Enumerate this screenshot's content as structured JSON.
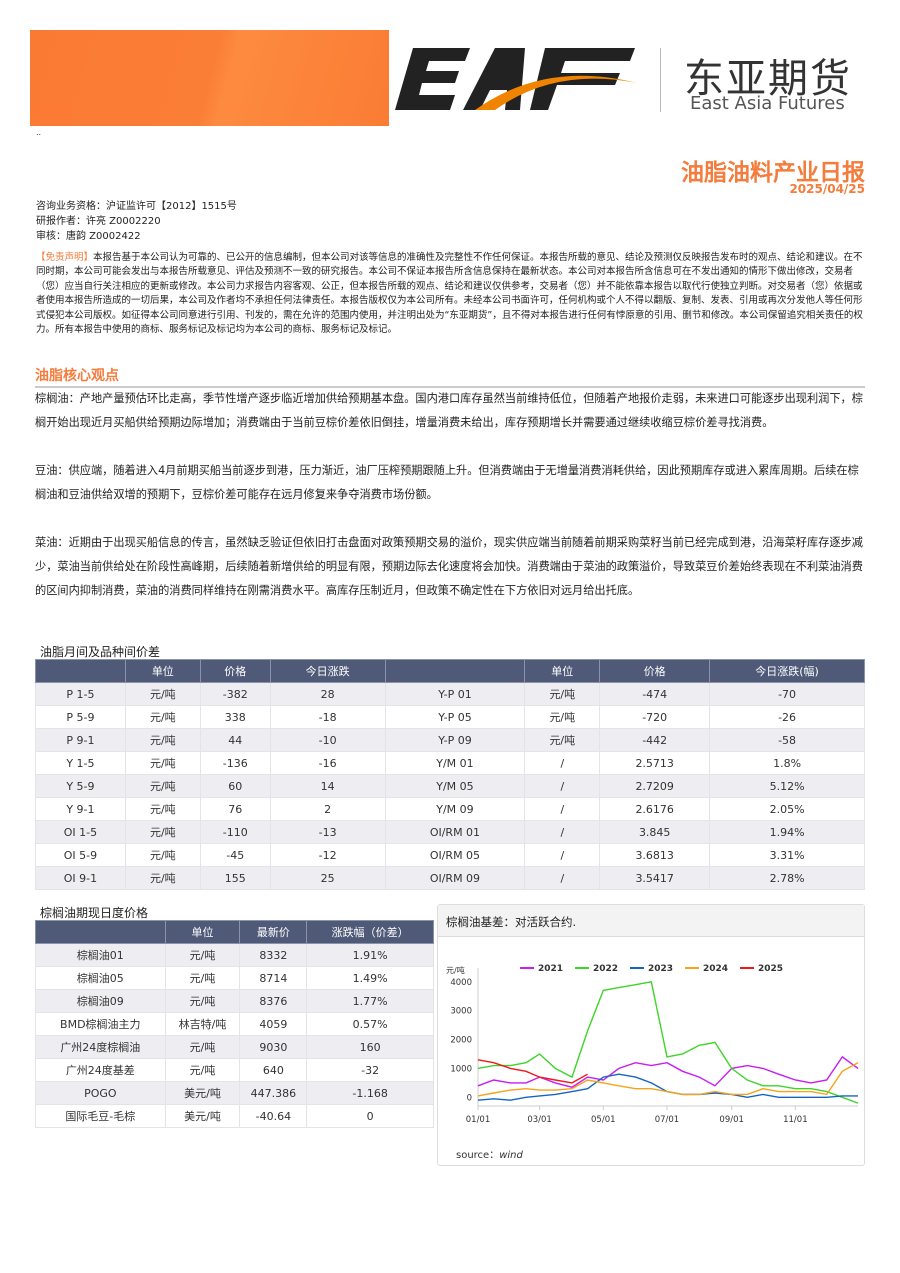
{
  "header": {
    "brand_cn": "东亚期货",
    "brand_en": "East Asia Futures",
    "logo_text": "EAF",
    "marker": "..",
    "title": "油脂油料产业日报",
    "date": "2025/04/25"
  },
  "meta": {
    "license": "咨询业务资格：沪证监许可【2012】1515号",
    "author": "研报作者：许亮 Z0002220",
    "reviewer": "审核：唐韵 Z0002422"
  },
  "disclaimer": {
    "tag": "【免责声明】",
    "text": "本报告基于本公司认为可靠的、已公开的信息编制，但本公司对该等信息的准确性及完整性不作任何保证。本报告所载的意见、结论及预测仅反映报告发布时的观点、结论和建议。在不同时期，本公司可能会发出与本报告所载意见、评估及预测不一致的研究报告。本公司不保证本报告所含信息保持在最新状态。本公司对本报告所含信息可在不发出通知的情形下做出修改，交易者（您）应当自行关注相应的更新或修改。本公司力求报告内容客观、公正，但本报告所载的观点、结论和建议仅供参考，交易者（您）并不能依靠本报告以取代行使独立判断。对交易者（您）依据或者使用本报告所造成的一切后果，本公司及作者均不承担任何法律责任。本报告版权仅为本公司所有。未经本公司书面许可，任何机构或个人不得以翻版、复制、发表、引用或再次分发他人等任何形式侵犯本公司版权。如征得本公司同意进行引用、刊发的，需在允许的范围内使用，并注明出处为“东亚期货”，且不得对本报告进行任何有悖原意的引用、删节和修改。本公司保留追究相关责任的权力。所有本报告中使用的商标、服务标记及标记均为本公司的商标、服务标记及标记。"
  },
  "core": {
    "heading": "油脂核心观点",
    "paragraphs": [
      "棕榈油：产地产量预估环比走高，季节性增产逐步临近增加供给预期基本盘。国内港口库存虽然当前维持低位，但随着产地报价走弱，未来进口可能逐步出现利润下，棕榈开始出现近月买船供给预期边际增加；消费端由于当前豆棕价差依旧倒挂，增量消费未给出，库存预期增长并需要通过继续收缩豆棕价差寻找消费。",
      "豆油：供应端，随着进入4月前期买船当前逐步到港，压力渐近，油厂压榨预期跟随上升。但消费端由于无增量消费消耗供给，因此预期库存或进入累库周期。后续在棕榈油和豆油供给双增的预期下，豆棕价差可能存在远月修复来争夺消费市场份额。",
      "菜油：近期由于出现买船信息的传言，虽然缺乏验证但依旧打击盘面对政策预期交易的溢价，现实供应端当前随着前期采购菜籽当前已经完成到港，沿海菜籽库存逐步减少，菜油当前供给处在阶段性高峰期，后续随着新增供给的明显有限，预期边际去化速度将会加快。消费端由于菜油的政策溢价，导致菜豆价差始终表现在不利菜油消费的区间内抑制消费，菜油的消费同样维持在刚需消费水平。高库存压制近月，但政策不确定性在下方依旧对远月给出托底。"
    ]
  },
  "spread_table": {
    "caption": "油脂月间及品种间价差",
    "headers": [
      "",
      "单位",
      "价格",
      "今日涨跌",
      "",
      "单位",
      "价格",
      "今日涨跌(幅)"
    ],
    "rows": [
      [
        "P 1-5",
        "元/吨",
        "-382",
        "28",
        "Y-P 01",
        "元/吨",
        "-474",
        "-70"
      ],
      [
        "P 5-9",
        "元/吨",
        "338",
        "-18",
        "Y-P 05",
        "元/吨",
        "-720",
        "-26"
      ],
      [
        "P 9-1",
        "元/吨",
        "44",
        "-10",
        "Y-P 09",
        "元/吨",
        "-442",
        "-58"
      ],
      [
        "Y 1-5",
        "元/吨",
        "-136",
        "-16",
        "Y/M 01",
        "/",
        "2.5713",
        "1.8%"
      ],
      [
        "Y 5-9",
        "元/吨",
        "60",
        "14",
        "Y/M 05",
        "/",
        "2.7209",
        "5.12%"
      ],
      [
        "Y 9-1",
        "元/吨",
        "76",
        "2",
        "Y/M 09",
        "/",
        "2.6176",
        "2.05%"
      ],
      [
        "OI 1-5",
        "元/吨",
        "-110",
        "-13",
        "OI/RM 01",
        "/",
        "3.845",
        "1.94%"
      ],
      [
        "OI 5-9",
        "元/吨",
        "-45",
        "-12",
        "OI/RM 05",
        "/",
        "3.6813",
        "3.31%"
      ],
      [
        "OI 9-1",
        "元/吨",
        "155",
        "25",
        "OI/RM 09",
        "/",
        "3.5417",
        "2.78%"
      ]
    ]
  },
  "palm_table": {
    "caption": "棕榈油期现日度价格",
    "headers": [
      "",
      "单位",
      "最新价",
      "涨跌幅（价差）"
    ],
    "rows": [
      [
        "棕榈油01",
        "元/吨",
        "8332",
        "1.91%"
      ],
      [
        "棕榈油05",
        "元/吨",
        "8714",
        "1.49%"
      ],
      [
        "棕榈油09",
        "元/吨",
        "8376",
        "1.77%"
      ],
      [
        "BMD棕榈油主力",
        "林吉特/吨",
        "4059",
        "0.57%"
      ],
      [
        "广州24度棕榈油",
        "元/吨",
        "9030",
        "160"
      ],
      [
        "广州24度基差",
        "元/吨",
        "640",
        "-32"
      ],
      [
        "POGO",
        "美元/吨",
        "447.386",
        "-1.168"
      ],
      [
        "国际毛豆-毛棕",
        "美元/吨",
        "-40.64",
        "0"
      ]
    ]
  },
  "chart_data": {
    "type": "line",
    "title": "棕榈油基差：对活跃合约.",
    "ylabel": "元/吨",
    "ylim": [
      -300,
      4200
    ],
    "yticks": [
      0,
      1000,
      2000,
      3000,
      4000
    ],
    "xticks": [
      "01/01",
      "03/01",
      "05/01",
      "07/01",
      "09/01",
      "11/01"
    ],
    "legend": "top",
    "grid": false,
    "source_label": "source：",
    "source": "wind",
    "x": [
      "01/01",
      "01/16",
      "02/01",
      "02/16",
      "03/01",
      "03/16",
      "04/01",
      "04/16",
      "05/01",
      "05/16",
      "06/01",
      "06/16",
      "07/01",
      "07/16",
      "08/01",
      "08/16",
      "09/01",
      "09/16",
      "10/01",
      "10/16",
      "11/01",
      "11/16",
      "12/01",
      "12/16",
      "12/31"
    ],
    "series": [
      {
        "name": "2021",
        "color": "#c81cf0",
        "values": [
          400,
          600,
          500,
          500,
          700,
          500,
          350,
          700,
          600,
          1000,
          1200,
          1100,
          1200,
          900,
          700,
          400,
          1000,
          1100,
          1000,
          800,
          600,
          500,
          600,
          1400,
          1000
        ]
      },
      {
        "name": "2022",
        "color": "#3fd42a",
        "values": [
          1000,
          1100,
          1100,
          1200,
          1500,
          1000,
          700,
          2300,
          3700,
          3800,
          3900,
          4000,
          1400,
          1500,
          1800,
          1900,
          1000,
          600,
          400,
          400,
          300,
          300,
          200,
          0,
          -200
        ]
      },
      {
        "name": "2023",
        "color": "#1565c0",
        "values": [
          -100,
          -50,
          -100,
          0,
          50,
          100,
          200,
          300,
          700,
          800,
          700,
          500,
          200,
          100,
          100,
          150,
          100,
          0,
          100,
          0,
          0,
          0,
          0,
          50,
          50
        ]
      },
      {
        "name": "2024",
        "color": "#f5a31a",
        "values": [
          50,
          150,
          250,
          300,
          250,
          250,
          300,
          600,
          500,
          400,
          300,
          300,
          200,
          100,
          100,
          200,
          100,
          100,
          300,
          200,
          200,
          200,
          100,
          900,
          1200
        ]
      },
      {
        "name": "2025",
        "color": "#f01818",
        "values": [
          1300,
          1200,
          1000,
          900,
          700,
          600,
          500,
          800,
          null,
          null,
          null,
          null,
          null,
          null,
          null,
          null,
          null,
          null,
          null,
          null,
          null,
          null,
          null,
          null,
          null
        ]
      }
    ]
  }
}
